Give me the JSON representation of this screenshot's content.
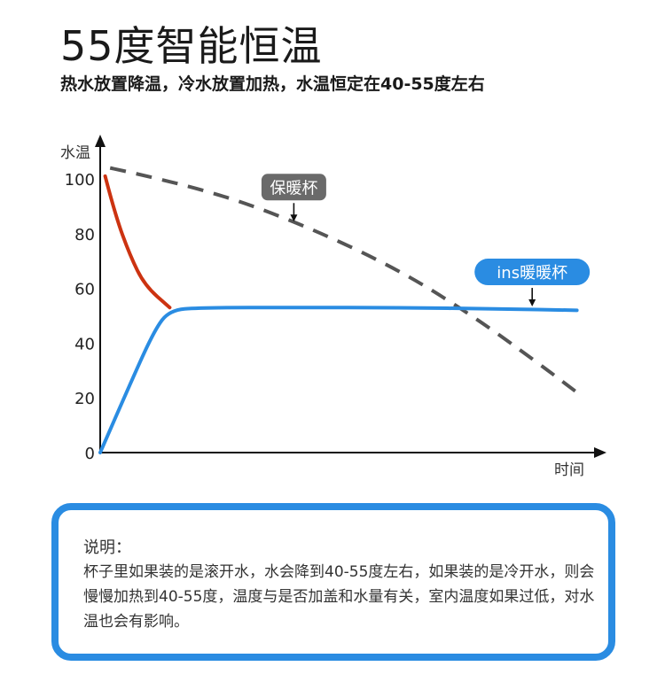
{
  "header": {
    "title": "55度智能恒温",
    "subtitle": "热水放置降温，冷水放置加热，水温恒定在40-55度左右"
  },
  "chart_data": {
    "type": "line",
    "ylabel": "水温",
    "xlabel": "时间",
    "yticks": [
      "0",
      "20",
      "40",
      "60",
      "80",
      "100"
    ],
    "ylim": [
      0,
      110
    ],
    "xlim": [
      0,
      100
    ],
    "grid": false,
    "series": [
      {
        "name": "保暖杯",
        "style": "dashed",
        "color": "#555555",
        "points": [
          [
            2,
            104
          ],
          [
            20,
            97
          ],
          [
            40,
            84
          ],
          [
            60,
            67
          ],
          [
            75,
            50
          ],
          [
            88,
            33
          ],
          [
            96,
            22
          ]
        ]
      },
      {
        "name": "ins暖暖杯",
        "style": "solid",
        "color": "#2a8ce2",
        "points": [
          [
            0,
            0
          ],
          [
            6,
            25
          ],
          [
            11,
            45
          ],
          [
            14,
            52
          ],
          [
            20,
            53
          ],
          [
            40,
            53
          ],
          [
            60,
            53
          ],
          [
            80,
            52.5
          ],
          [
            96,
            52
          ]
        ]
      },
      {
        "style": "solid",
        "color": "#cc3311",
        "points": [
          [
            1,
            101
          ],
          [
            3,
            87
          ],
          [
            6,
            72
          ],
          [
            9,
            61
          ],
          [
            14,
            53
          ]
        ]
      }
    ],
    "annotations": [
      {
        "text": "保暖杯",
        "color": "#6a6a6a",
        "x": 39,
        "y": 97
      },
      {
        "text": "ins暖暖杯",
        "color": "#2a8ce2",
        "x": 87,
        "y": 66
      }
    ]
  },
  "note": {
    "title": "说明：",
    "body": "杯子里如果装的是滚开水，水会降到40-55度左右，如果装的是冷开水，则会慢慢加热到40-55度，温度与是否加盖和水量有关，室内温度如果过低，对水温也会有影响。"
  }
}
